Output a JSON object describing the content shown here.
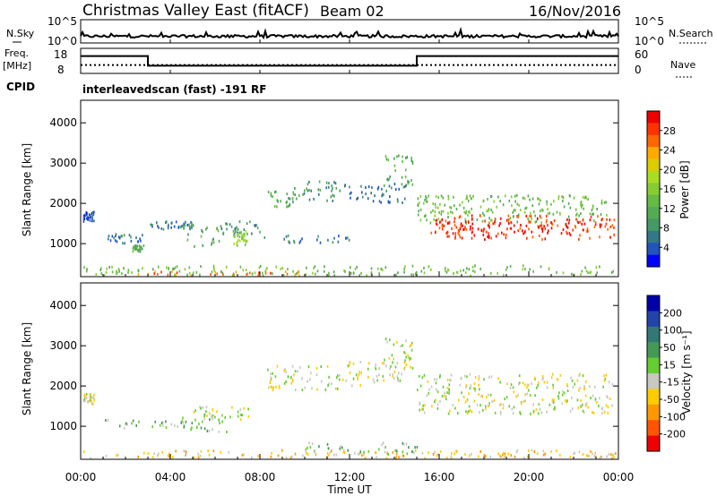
{
  "header": {
    "title": "Christmas Valley East (fitACF)",
    "beam": "Beam 02",
    "date": "16/Nov/2016"
  },
  "nsky_panel": {
    "left_label": "N.Sky",
    "left_ticks": [
      "10^5",
      "10^0"
    ],
    "right_ticks": [
      "10^5",
      "10^0"
    ],
    "right_label": "N.Search"
  },
  "freq_panel": {
    "left_label_line1": "Freq.",
    "left_label_line2": "[MHz]",
    "left_ticks": [
      "18",
      "8"
    ],
    "right_ticks": [
      "60",
      "0"
    ],
    "right_label": "Nave",
    "cpid_label": "CPID",
    "cpid_text": "interleavedscan (fast) -191 RF"
  },
  "time_axis": {
    "label": "Time UT",
    "ticks": [
      "00:00",
      "04:00",
      "08:00",
      "12:00",
      "16:00",
      "20:00",
      "00:00"
    ]
  },
  "power_panel": {
    "ylabel": "Slant Range [km]",
    "yticks": [
      "1000",
      "2000",
      "3000",
      "4000"
    ],
    "colorbar_label": "Power [dB]",
    "colorbar_ticks": [
      "4",
      "8",
      "12",
      "16",
      "20",
      "24",
      "28"
    ],
    "colors": [
      "#0000ff",
      "#2255bb",
      "#337788",
      "#449966",
      "#55aa55",
      "#66bb44",
      "#88cc33",
      "#aadd22",
      "#ddcc00",
      "#ffaa00",
      "#ff6600",
      "#ff3300",
      "#ee0000"
    ]
  },
  "velocity_panel": {
    "ylabel": "Slant Range [km]",
    "yticks": [
      "1000",
      "2000",
      "3000",
      "4000"
    ],
    "colorbar_label": "Velocity [m s⁻¹]",
    "colorbar_ticks": [
      "200",
      "100",
      "50",
      "15",
      "-15",
      "-50",
      "-100",
      "-200"
    ],
    "colors": [
      "#0000aa",
      "#2244aa",
      "#337777",
      "#449955",
      "#66cc33",
      "#c8c8c0",
      "#ffcc00",
      "#ff9900",
      "#ff5500",
      "#ee0000"
    ]
  },
  "chart_data": {
    "type": "heatmap",
    "x_range_hours": [
      0,
      24
    ],
    "y_range_km": [
      180,
      4560
    ],
    "frequency_mhz": [
      {
        "from": 0,
        "to": 3,
        "value": 15
      },
      {
        "from": 3,
        "to": 15,
        "value": 10
      },
      {
        "from": 15,
        "to": 24,
        "value": 15
      }
    ],
    "nave_level": 20,
    "echo_regions_power": [
      {
        "t0": 0.1,
        "t1": 0.6,
        "r0": 1550,
        "r1": 1800,
        "level": 1
      },
      {
        "t0": 1.0,
        "t1": 2.8,
        "r0": 1000,
        "r1": 1250,
        "level": 2
      },
      {
        "t0": 2.3,
        "t1": 2.8,
        "r0": 800,
        "r1": 950,
        "level": 4
      },
      {
        "t0": 3.0,
        "t1": 5.0,
        "r0": 1350,
        "r1": 1550,
        "level": 2
      },
      {
        "t0": 4.5,
        "t1": 6.2,
        "r0": 900,
        "r1": 1500,
        "level": 4
      },
      {
        "t0": 6.2,
        "t1": 8.0,
        "r0": 1200,
        "r1": 1550,
        "level": 3
      },
      {
        "t0": 6.8,
        "t1": 7.4,
        "r0": 950,
        "r1": 1300,
        "level": 6
      },
      {
        "t0": 8.0,
        "t1": 12.0,
        "r0": 1000,
        "r1": 1200,
        "level": 2
      },
      {
        "t0": 8.3,
        "t1": 9.5,
        "r0": 1900,
        "r1": 2300,
        "level": 4
      },
      {
        "t0": 9.5,
        "t1": 11.5,
        "r0": 2050,
        "r1": 2600,
        "level": 3
      },
      {
        "t0": 11.5,
        "t1": 14.5,
        "r0": 2000,
        "r1": 2500,
        "level": 2
      },
      {
        "t0": 13.5,
        "t1": 14.8,
        "r0": 2400,
        "r1": 3200,
        "level": 4
      },
      {
        "t0": 15.0,
        "t1": 23.6,
        "r0": 1500,
        "r1": 2200,
        "level": 5
      },
      {
        "t0": 15.6,
        "t1": 23.8,
        "r0": 1100,
        "r1": 1700,
        "level": 11
      },
      {
        "t0": 16.0,
        "t1": 23.0,
        "r0": 1250,
        "r1": 1550,
        "level": 12
      },
      {
        "t0": 0.0,
        "t1": 24.0,
        "r0": 200,
        "r1": 450,
        "level": 5
      },
      {
        "t0": 2.5,
        "t1": 10.0,
        "r0": 200,
        "r1": 320,
        "level": 10
      }
    ],
    "echo_regions_velocity": [
      {
        "t0": 0.1,
        "t1": 0.6,
        "r0": 1550,
        "r1": 1800,
        "level": 5
      },
      {
        "t0": 1.0,
        "t1": 4.5,
        "r0": 950,
        "r1": 1150,
        "level": 4
      },
      {
        "t0": 4.5,
        "t1": 6.5,
        "r0": 850,
        "r1": 1300,
        "level": 4
      },
      {
        "t0": 5.0,
        "t1": 7.5,
        "r0": 1100,
        "r1": 1500,
        "level": 5
      },
      {
        "t0": 8.3,
        "t1": 11.5,
        "r0": 1900,
        "r1": 2500,
        "level": 5
      },
      {
        "t0": 11.5,
        "t1": 14.5,
        "r0": 2000,
        "r1": 2600,
        "level": 5
      },
      {
        "t0": 13.5,
        "t1": 14.8,
        "r0": 2400,
        "r1": 3200,
        "level": 5
      },
      {
        "t0": 15.0,
        "t1": 23.8,
        "r0": 1300,
        "r1": 2300,
        "level": 5
      },
      {
        "t0": 0.0,
        "t1": 24.0,
        "r0": 200,
        "r1": 400,
        "level": 6
      },
      {
        "t0": 10.0,
        "t1": 15.0,
        "r0": 300,
        "r1": 600,
        "level": 4
      }
    ]
  }
}
